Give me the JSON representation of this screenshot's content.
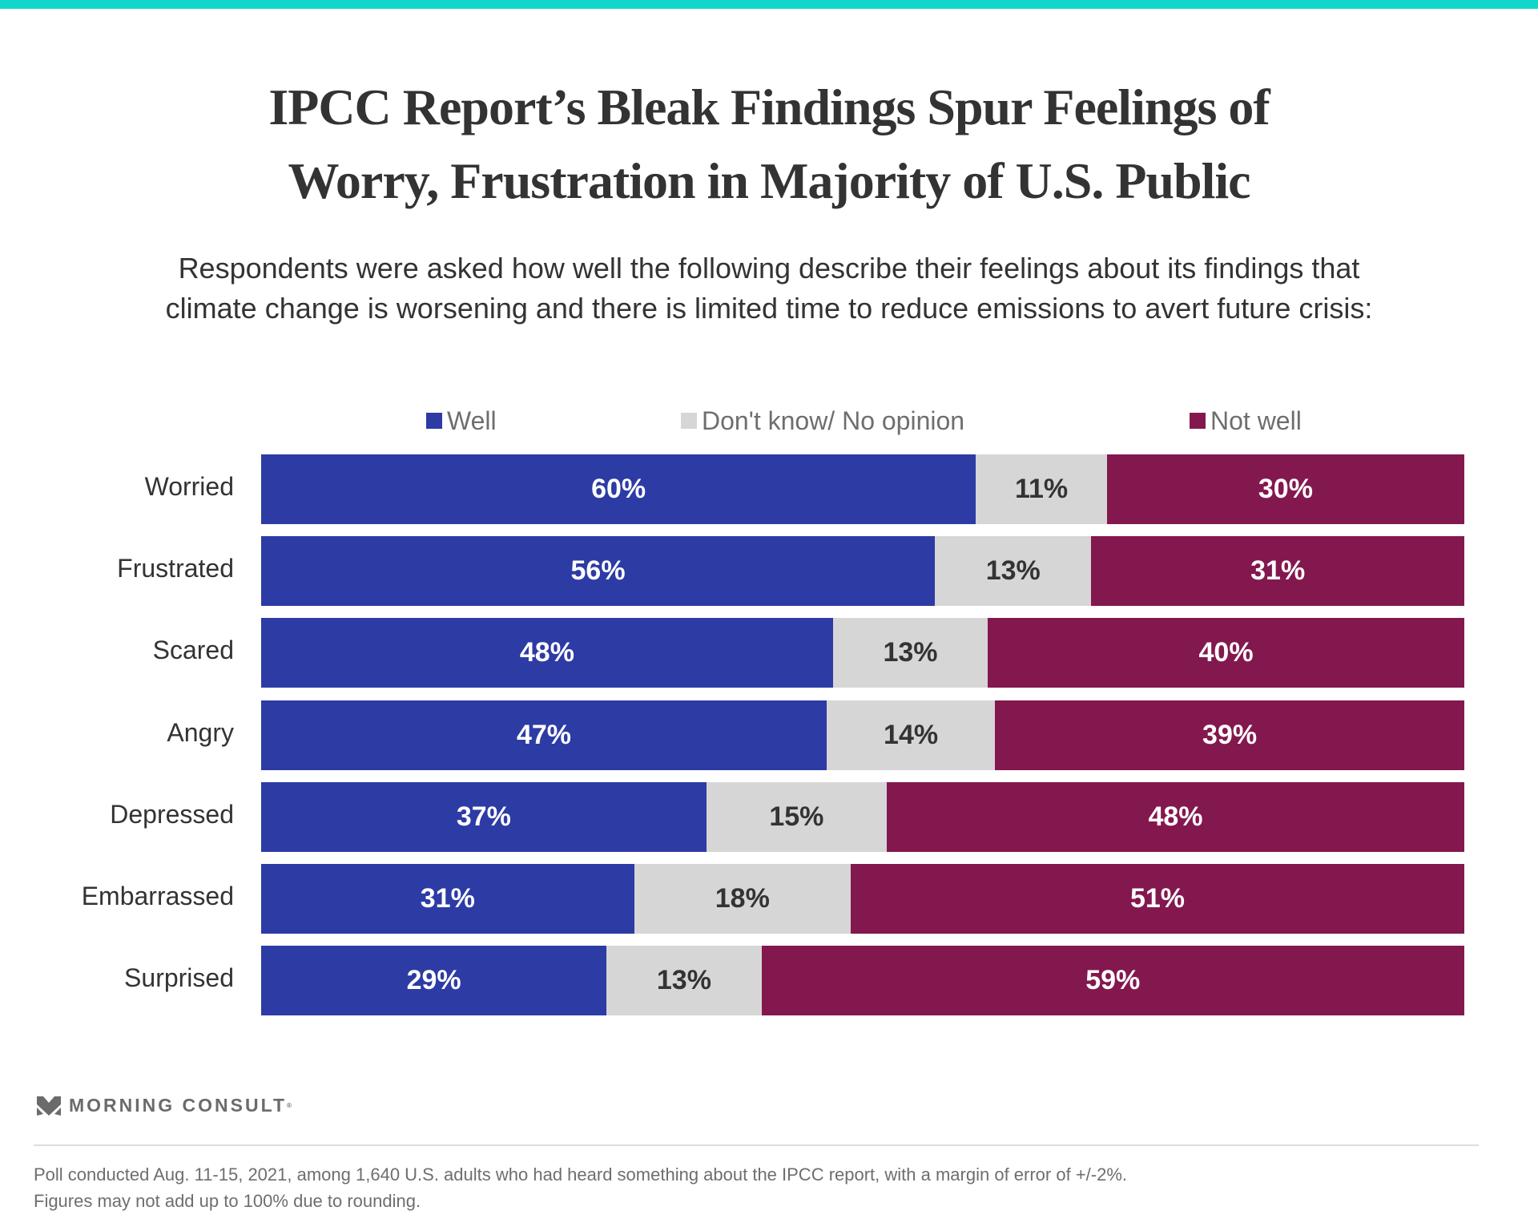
{
  "colors": {
    "top_bar": "#11D6CD",
    "well": "#2D3BA5",
    "dont_know": "#D6D6D6",
    "not_well": "#83184E"
  },
  "title_lines": [
    "IPCC Report’s Bleak Findings Spur Feelings of",
    "Worry, Frustration in Majority of U.S. Public"
  ],
  "subtitle_lines": [
    "Respondents were asked how well the following describe their feelings about its findings that",
    "climate change is worsening and there is limited time to reduce emissions to avert future crisis:"
  ],
  "chart_data": {
    "type": "bar",
    "orientation": "horizontal",
    "stacked": true,
    "title": "IPCC Report’s Bleak Findings Spur Feelings of Worry, Frustration in Majority of U.S. Public",
    "xlabel": "",
    "ylabel": "",
    "xlim": [
      0,
      100
    ],
    "unit": "%",
    "legend_position": "top",
    "categories": [
      "Worried",
      "Frustrated",
      "Scared",
      "Angry",
      "Depressed",
      "Embarrassed",
      "Surprised"
    ],
    "series": [
      {
        "name": "Well",
        "key": "well",
        "values": [
          60,
          56,
          48,
          47,
          37,
          31,
          29
        ]
      },
      {
        "name": "Don't know/ No opinion",
        "key": "dont_know",
        "values": [
          11,
          13,
          13,
          14,
          15,
          18,
          13
        ]
      },
      {
        "name": "Not well",
        "key": "not_well",
        "values": [
          30,
          31,
          40,
          39,
          48,
          51,
          59
        ]
      }
    ]
  },
  "brand": {
    "name": "MORNING CONSULT",
    "mark": "®",
    "icon": "morning-consult-logo-icon"
  },
  "footnotes": [
    "Poll conducted Aug. 11-15, 2021, among 1,640 U.S. adults who had heard something about the IPCC report, with a margin of error of +/-2%.",
    "Figures may not add up to 100% due to rounding."
  ]
}
